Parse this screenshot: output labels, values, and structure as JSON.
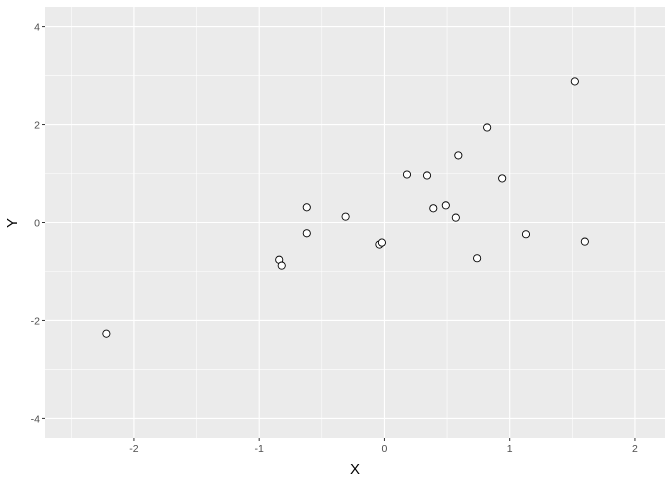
{
  "chart_data": {
    "type": "scatter",
    "title": "",
    "xlabel": "X",
    "ylabel": "Y",
    "xlim": [
      -2.71,
      2.24
    ],
    "ylim": [
      -4.4,
      4.4
    ],
    "xticks": [
      -2,
      -1,
      0,
      1,
      2
    ],
    "xtick_labels": [
      "-2",
      "-1",
      "0",
      "1",
      "2"
    ],
    "yticks": [
      -4,
      -2,
      0,
      2,
      4
    ],
    "ytick_labels": [
      "-4",
      "-2",
      "0",
      "2",
      "4"
    ],
    "grid": true,
    "panel_background": "#EBEBEB",
    "grid_color": "#FFFFFF",
    "marker": "open-circle",
    "marker_color": "#000000",
    "points": [
      {
        "x": -2.22,
        "y": -2.27
      },
      {
        "x": -0.84,
        "y": -0.76
      },
      {
        "x": -0.82,
        "y": -0.88
      },
      {
        "x": -0.62,
        "y": 0.31
      },
      {
        "x": -0.62,
        "y": -0.22
      },
      {
        "x": -0.31,
        "y": 0.12
      },
      {
        "x": -0.04,
        "y": -0.45
      },
      {
        "x": -0.02,
        "y": -0.41
      },
      {
        "x": 0.18,
        "y": 0.98
      },
      {
        "x": 0.34,
        "y": 0.96
      },
      {
        "x": 0.39,
        "y": 0.29
      },
      {
        "x": 0.49,
        "y": 0.35
      },
      {
        "x": 0.57,
        "y": 0.1
      },
      {
        "x": 0.59,
        "y": 1.37
      },
      {
        "x": 0.74,
        "y": -0.73
      },
      {
        "x": 0.82,
        "y": 1.94
      },
      {
        "x": 0.94,
        "y": 0.9
      },
      {
        "x": 1.13,
        "y": -0.24
      },
      {
        "x": 1.52,
        "y": 2.88
      },
      {
        "x": 1.6,
        "y": -0.39
      }
    ]
  }
}
